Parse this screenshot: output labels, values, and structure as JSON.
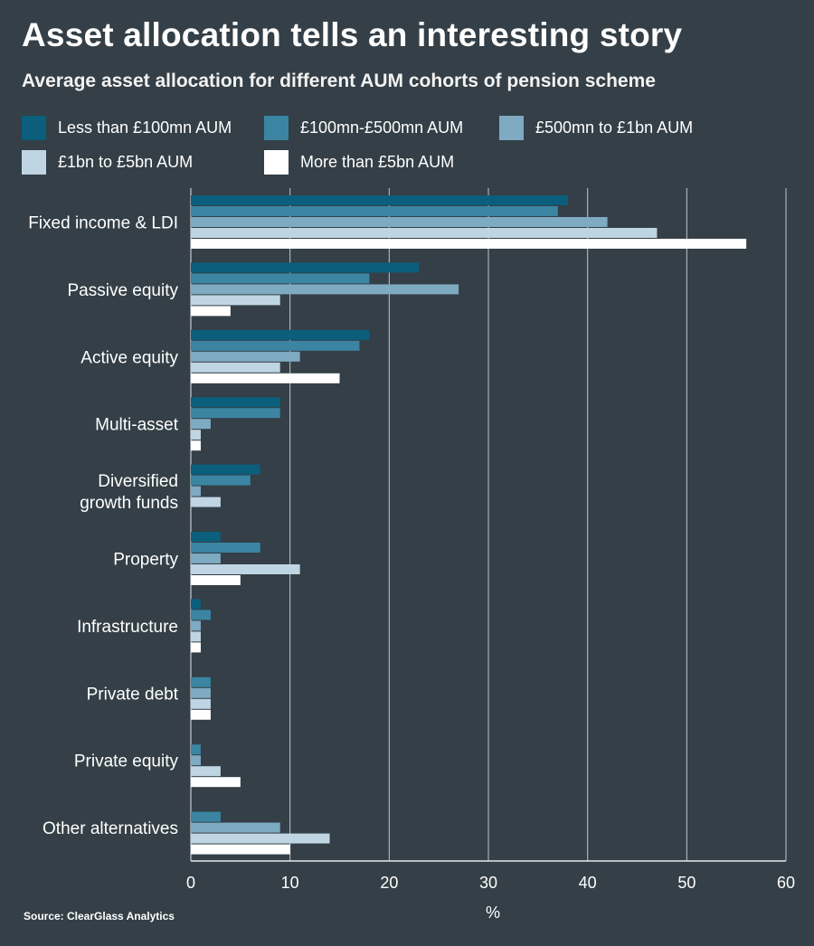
{
  "chart_data": {
    "type": "bar",
    "orientation": "horizontal",
    "title": "Asset allocation tells an interesting story",
    "subtitle": "Average asset allocation for different AUM cohorts of pension scheme",
    "xlabel": "%",
    "ylabel": "",
    "xlim": [
      0,
      60
    ],
    "xticks": [
      0,
      10,
      20,
      30,
      40,
      50,
      60
    ],
    "grid": "vertical",
    "legend_position": "top",
    "categories": [
      [
        "Fixed income & LDI"
      ],
      [
        "Passive equity"
      ],
      [
        "Active equity"
      ],
      [
        "Multi-asset"
      ],
      [
        "Diversified",
        "growth funds"
      ],
      [
        "Property"
      ],
      [
        "Infrastructure"
      ],
      [
        "Private debt"
      ],
      [
        "Private equity"
      ],
      [
        "Other alternatives"
      ]
    ],
    "series": [
      {
        "name": "Less than £100mn AUM",
        "color": "#0b5e7c",
        "values": [
          38,
          23,
          18,
          9,
          7,
          3,
          1,
          0,
          0,
          0
        ]
      },
      {
        "name": "£100mn-£500mn AUM",
        "color": "#3b85a3",
        "values": [
          37,
          18,
          17,
          9,
          6,
          7,
          2,
          2,
          1,
          3
        ]
      },
      {
        "name": "£500mn to £1bn AUM",
        "color": "#7eaac2",
        "values": [
          42,
          27,
          11,
          2,
          1,
          3,
          1,
          2,
          1,
          9
        ]
      },
      {
        "name": "£1bn to £5bn AUM",
        "color": "#c0d5e3",
        "values": [
          47,
          9,
          9,
          1,
          3,
          11,
          1,
          2,
          3,
          14
        ]
      },
      {
        "name": "More than £5bn AUM",
        "color": "#ffffff",
        "values": [
          56,
          4,
          15,
          1,
          0,
          5,
          1,
          2,
          5,
          10
        ]
      }
    ]
  },
  "source": "Source: ClearGlass Analytics"
}
